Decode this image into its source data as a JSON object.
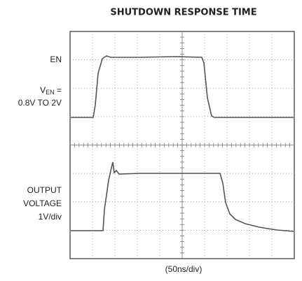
{
  "title": "SHUTDOWN RESPONSE TIME",
  "labels": {
    "en": "EN",
    "ven_main": "V",
    "ven_sub": "EN",
    "ven_eq": " =",
    "ven_range": "0.8V TO 2V",
    "out_1": "OUTPUT",
    "out_2": "VOLTAGE",
    "out_3": "1V/div"
  },
  "x_scale": "(50ns/div)"
}
